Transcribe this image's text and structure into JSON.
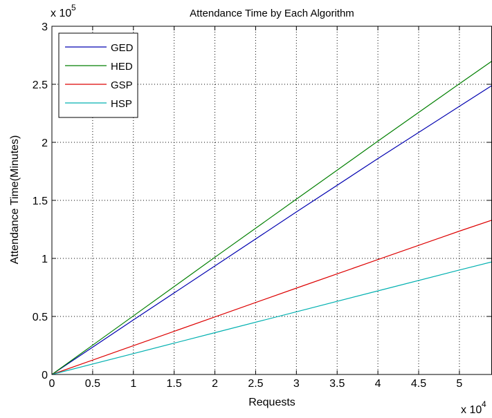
{
  "chart_data": {
    "type": "line",
    "title": "Attendance Time by Each Algorithm",
    "xlabel": "Requests",
    "ylabel": "Attendance Time(Minutes)",
    "x_multiplier_label": "x 10",
    "x_multiplier_exponent": "4",
    "y_multiplier_label": "x 10",
    "y_multiplier_exponent": "5",
    "xlim": [
      0,
      54000
    ],
    "ylim": [
      0,
      300000
    ],
    "grid": true,
    "grid_style": "dotted",
    "legend_position": "top-left",
    "x_ticks": [
      0,
      5000,
      10000,
      15000,
      20000,
      25000,
      30000,
      35000,
      40000,
      45000,
      50000
    ],
    "x_tick_labels": [
      "0",
      "0.5",
      "1",
      "1.5",
      "2",
      "2.5",
      "3",
      "3.5",
      "4",
      "4.5",
      "5"
    ],
    "y_ticks": [
      0,
      50000,
      100000,
      150000,
      200000,
      250000,
      300000
    ],
    "y_tick_labels": [
      "0",
      "0.5",
      "1",
      "1.5",
      "2",
      "2.5",
      "3"
    ],
    "series": [
      {
        "name": "GED",
        "color": "#0000b0",
        "x": [
          0,
          10000,
          20000,
          30000,
          40000,
          50000,
          54000
        ],
        "y": [
          0,
          47000,
          93500,
          140000,
          186000,
          231000,
          249000
        ]
      },
      {
        "name": "HED",
        "color": "#007f00",
        "x": [
          0,
          10000,
          20000,
          30000,
          40000,
          50000,
          54000
        ],
        "y": [
          0,
          50500,
          101000,
          151000,
          201000,
          250500,
          270000
        ]
      },
      {
        "name": "GSP",
        "color": "#dd0000",
        "x": [
          0,
          10000,
          20000,
          30000,
          40000,
          50000,
          54000
        ],
        "y": [
          0,
          24800,
          49600,
          74400,
          99000,
          123500,
          133000
        ]
      },
      {
        "name": "HSP",
        "color": "#00b0b0",
        "x": [
          0,
          10000,
          20000,
          30000,
          40000,
          50000,
          54000
        ],
        "y": [
          0,
          18000,
          36000,
          54000,
          72000,
          90000,
          97000
        ]
      }
    ]
  }
}
